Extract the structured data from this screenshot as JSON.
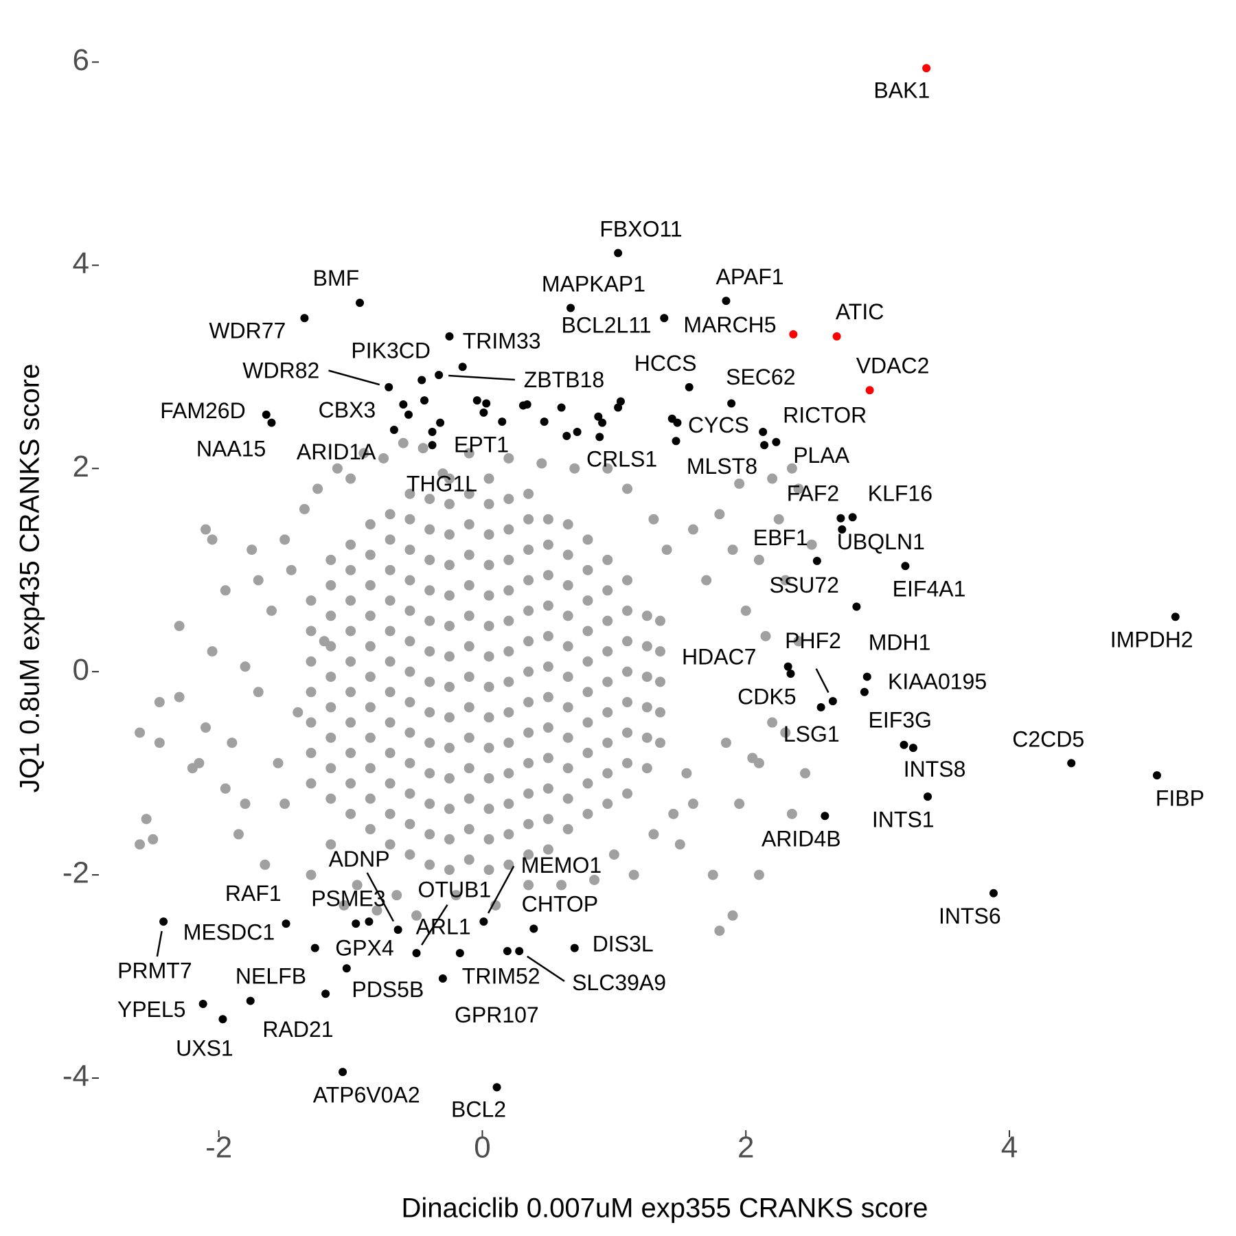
{
  "chart_data": {
    "type": "scatter",
    "x_label": "Dinaciclib 0.007uM exp355 CRANKS score",
    "y_label": "JQ1 0.8uM exp435 CRANKS score",
    "xlim": [
      -2.9,
      5.6
    ],
    "ylim": [
      -4.5,
      6.3
    ],
    "xticks": [
      -2,
      0,
      2,
      4
    ],
    "yticks": [
      -4,
      -2,
      0,
      2,
      4,
      6
    ],
    "grid": false,
    "series": [
      {
        "color": "#a0a0a0",
        "x": [
          -1.3,
          -1.3,
          -1.3,
          -1.3,
          -1.3,
          -1.3,
          -1.3,
          -1.15,
          -1.15,
          -1.15,
          -1.15,
          -1.15,
          -1.15,
          -1.15,
          -1.15,
          -1.15,
          -1.0,
          -1.0,
          -1.0,
          -1.0,
          -1.0,
          -1.0,
          -1.0,
          -1.0,
          -1.0,
          -1.0,
          -0.85,
          -0.85,
          -0.85,
          -0.85,
          -0.85,
          -0.85,
          -0.85,
          -0.85,
          -0.85,
          -0.85,
          -0.85,
          -0.7,
          -0.7,
          -0.7,
          -0.7,
          -0.7,
          -0.7,
          -0.7,
          -0.7,
          -0.7,
          -0.7,
          -0.7,
          -0.7,
          -0.55,
          -0.55,
          -0.55,
          -0.55,
          -0.55,
          -0.55,
          -0.55,
          -0.55,
          -0.55,
          -0.55,
          -0.55,
          -0.55,
          -0.55,
          -0.4,
          -0.4,
          -0.4,
          -0.4,
          -0.4,
          -0.4,
          -0.4,
          -0.4,
          -0.4,
          -0.4,
          -0.4,
          -0.4,
          -0.4,
          -0.25,
          -0.25,
          -0.25,
          -0.25,
          -0.25,
          -0.25,
          -0.25,
          -0.25,
          -0.25,
          -0.25,
          -0.25,
          -0.25,
          -0.25,
          -0.25,
          -0.1,
          -0.1,
          -0.1,
          -0.1,
          -0.1,
          -0.1,
          -0.1,
          -0.1,
          -0.1,
          -0.1,
          -0.1,
          -0.1,
          -0.1,
          0.05,
          0.05,
          0.05,
          0.05,
          0.05,
          0.05,
          0.05,
          0.05,
          0.05,
          0.05,
          0.05,
          0.05,
          0.05,
          0.05,
          0.2,
          0.2,
          0.2,
          0.2,
          0.2,
          0.2,
          0.2,
          0.2,
          0.2,
          0.2,
          0.2,
          0.2,
          0.2,
          0.35,
          0.35,
          0.35,
          0.35,
          0.35,
          0.35,
          0.35,
          0.35,
          0.35,
          0.35,
          0.35,
          0.35,
          0.35,
          0.5,
          0.5,
          0.5,
          0.5,
          0.5,
          0.5,
          0.5,
          0.5,
          0.5,
          0.5,
          0.5,
          0.5,
          0.65,
          0.65,
          0.65,
          0.65,
          0.65,
          0.65,
          0.65,
          0.65,
          0.65,
          0.65,
          0.65,
          0.8,
          0.8,
          0.8,
          0.8,
          0.8,
          0.8,
          0.8,
          0.8,
          0.8,
          0.8,
          0.95,
          0.95,
          0.95,
          0.95,
          0.95,
          0.95,
          0.95,
          0.95,
          0.95,
          1.1,
          1.1,
          1.1,
          1.1,
          1.1,
          1.1,
          1.1,
          1.1,
          1.25,
          1.25,
          1.25,
          1.25,
          1.25,
          1.25,
          1.35,
          1.35,
          1.35,
          1.35,
          1.35,
          -2.6,
          -2.55,
          -2.5,
          -2.45,
          -2.6,
          -2.45,
          -2.3,
          -2.2,
          -2.1,
          -2.05,
          -2.1,
          -2.05,
          -1.95,
          -1.95,
          -1.9,
          -1.85,
          -1.8,
          -1.75,
          -1.7,
          -1.65,
          -1.6,
          -1.5,
          -1.5,
          -1.45,
          -1.4,
          -1.35,
          -1.3,
          -1.25,
          -1.2,
          -1.15,
          -1.1,
          -1.05,
          -1.0,
          -0.95,
          -0.9,
          -0.8,
          -0.75,
          -0.65,
          -0.6,
          -0.5,
          -0.45,
          -0.3,
          -0.2,
          -0.1,
          0.1,
          0.2,
          0.35,
          0.45,
          0.6,
          0.7,
          0.85,
          0.95,
          1.0,
          1.1,
          1.15,
          1.3,
          1.3,
          1.4,
          1.45,
          1.5,
          1.6,
          1.6,
          1.7,
          1.75,
          1.8,
          1.8,
          1.9,
          1.9,
          1.95,
          2.0,
          2.05,
          2.1,
          2.1,
          2.15,
          2.2,
          2.25,
          2.3,
          2.3,
          2.35,
          2.4,
          2.4,
          2.45,
          2.5,
          2.1,
          1.95,
          2.2,
          2.35,
          1.85,
          1.55,
          -1.8,
          -2.3,
          -2.15,
          -1.55,
          -1.7
        ],
        "values": [
          -1.1,
          -0.8,
          -0.5,
          -0.2,
          0.1,
          0.4,
          0.7,
          -1.25,
          -0.95,
          -0.65,
          -0.35,
          -0.05,
          0.25,
          0.55,
          0.85,
          1.1,
          -1.4,
          -1.1,
          -0.8,
          -0.5,
          -0.2,
          0.1,
          0.4,
          0.7,
          1.0,
          1.25,
          -1.55,
          -1.25,
          -0.95,
          -0.65,
          -0.35,
          -0.05,
          0.25,
          0.55,
          0.85,
          1.15,
          1.45,
          -1.7,
          -1.4,
          -1.1,
          -0.8,
          -0.5,
          -0.2,
          0.1,
          0.4,
          0.7,
          1.0,
          1.3,
          1.55,
          -1.8,
          -1.5,
          -1.2,
          -0.9,
          -0.6,
          -0.3,
          0.0,
          0.3,
          0.6,
          0.9,
          1.2,
          1.5,
          1.75,
          -1.9,
          -1.6,
          -1.3,
          -1.0,
          -0.7,
          -0.4,
          -0.1,
          0.2,
          0.5,
          0.8,
          1.1,
          1.4,
          1.7,
          -1.95,
          -1.65,
          -1.35,
          -1.05,
          -0.75,
          -0.45,
          -0.15,
          0.15,
          0.45,
          0.75,
          1.05,
          1.35,
          1.65,
          1.9,
          -1.85,
          -1.55,
          -1.25,
          -0.95,
          -0.65,
          -0.35,
          -0.05,
          0.25,
          0.55,
          0.85,
          1.15,
          1.45,
          1.75,
          -1.95,
          -1.65,
          -1.35,
          -1.05,
          -0.75,
          -0.45,
          -0.15,
          0.15,
          0.45,
          0.75,
          1.05,
          1.35,
          1.65,
          1.9,
          -1.9,
          -1.6,
          -1.3,
          -1.0,
          -0.7,
          -0.4,
          -0.1,
          0.2,
          0.5,
          0.8,
          1.1,
          1.4,
          1.7,
          -1.8,
          -1.5,
          -1.2,
          -0.9,
          -0.6,
          -0.3,
          0.0,
          0.3,
          0.6,
          0.9,
          1.2,
          1.5,
          1.75,
          -1.75,
          -1.45,
          -1.15,
          -0.85,
          -0.55,
          -0.25,
          0.05,
          0.35,
          0.65,
          0.95,
          1.25,
          1.5,
          -1.55,
          -1.25,
          -0.95,
          -0.65,
          -0.35,
          -0.05,
          0.25,
          0.55,
          0.85,
          1.15,
          1.45,
          -1.4,
          -1.1,
          -0.8,
          -0.5,
          -0.2,
          0.1,
          0.4,
          0.7,
          1.0,
          1.3,
          -1.3,
          -1.0,
          -0.7,
          -0.4,
          -0.1,
          0.2,
          0.5,
          0.8,
          1.1,
          -1.2,
          -0.9,
          -0.6,
          -0.3,
          0.0,
          0.3,
          0.6,
          0.9,
          -0.95,
          -0.65,
          -0.35,
          -0.05,
          0.25,
          0.55,
          -0.7,
          -0.4,
          -0.1,
          0.2,
          0.5,
          -1.7,
          -1.45,
          -1.65,
          -0.3,
          -0.6,
          -0.7,
          0.45,
          -0.95,
          -0.55,
          0.2,
          1.4,
          1.3,
          0.8,
          -1.15,
          -0.7,
          -1.6,
          0.05,
          1.2,
          -0.2,
          -1.9,
          0.6,
          1.3,
          -1.3,
          1.0,
          -0.4,
          1.6,
          -2.0,
          1.8,
          0.3,
          -1.7,
          2.0,
          -2.3,
          1.9,
          -2.1,
          2.15,
          -2.35,
          2.1,
          -2.2,
          2.25,
          -2.4,
          2.2,
          1.95,
          -2.2,
          2.15,
          -2.3,
          2.1,
          -2.1,
          2.05,
          -2.1,
          2.0,
          -2.05,
          2.0,
          -1.8,
          1.8,
          -2.0,
          1.5,
          -1.6,
          1.2,
          -1.4,
          -1.7,
          1.4,
          -1.3,
          0.9,
          -2.0,
          1.55,
          -2.55,
          -2.4,
          1.2,
          -1.3,
          0.6,
          -0.85,
          1.1,
          -2.0,
          0.35,
          -0.5,
          1.5,
          0.9,
          -0.6,
          -1.4,
          1.8,
          0.3,
          -1.0,
          1.25,
          -0.9,
          1.85,
          1.9,
          2.0,
          -0.7,
          -1.0,
          -1.3,
          -0.25,
          -0.9,
          -0.9,
          0.9
        ]
      },
      {
        "color": "#000000",
        "labels": [
          "FBXO11",
          "BMF",
          "WDR77",
          "MAPKAP1",
          "APAF1",
          "BCL2L11",
          "TRIM33",
          "ZBTB18",
          "PIK3CD",
          "WDR82",
          "CBX3",
          "ARID1A",
          "EPT1",
          "THG1L",
          "HCCS",
          "SEC62",
          "CYCS",
          "MLST8",
          "RICTOR",
          "PLAA",
          "CRLS1",
          "FAM26D",
          "NAA15",
          "FAF2",
          "KLF16",
          "UBQLN1",
          "EBF1",
          "EIF4A1",
          "SSU72",
          "IMPDH2",
          "HDAC7",
          "CDK5",
          "PHF2",
          "LSG1",
          "MDH1",
          "KIAA0195",
          "EIF3G",
          "INTS8",
          "C2CD5",
          "FIBP",
          "INTS1",
          "ARID4B",
          "INTS6",
          "PRMT7",
          "MESDC1",
          "RAF1",
          "GPX4",
          "PSME3",
          "ADNP",
          "OTUB1",
          "ARL1",
          "MEMO1",
          "CHTOP",
          "TRIM52",
          "SLC39A9",
          "DIS3L",
          "GPR107",
          "PDS5B",
          "NELFB",
          "RAD21",
          "YPEL5",
          "UXS1",
          "ATP6V0A2",
          "BCL2",
          null,
          null,
          null,
          null,
          null,
          null,
          null,
          null,
          null,
          null,
          null,
          null,
          null,
          null,
          null,
          null,
          null,
          null,
          null,
          null
        ],
        "x": [
          1.03,
          -0.93,
          -1.35,
          0.67,
          1.85,
          1.38,
          -0.25,
          -0.33,
          -0.46,
          -0.71,
          -0.6,
          -0.67,
          -0.32,
          -0.38,
          1.57,
          1.89,
          1.48,
          1.47,
          2.13,
          2.23,
          0.89,
          -1.64,
          -1.6,
          2.72,
          2.81,
          2.73,
          2.54,
          3.21,
          2.84,
          5.26,
          2.32,
          2.34,
          2.66,
          2.57,
          2.92,
          2.9,
          3.2,
          3.27,
          4.47,
          5.12,
          3.38,
          2.6,
          3.88,
          -2.42,
          -1.49,
          -1.27,
          -0.96,
          -0.86,
          -0.64,
          -0.5,
          -0.17,
          0.01,
          0.39,
          0.19,
          0.28,
          0.7,
          -0.3,
          -1.03,
          -1.19,
          -1.76,
          -2.12,
          -1.97,
          -1.06,
          0.11,
          -0.15,
          -0.56,
          -0.44,
          -0.38,
          -0.04,
          0.03,
          0.01,
          0.15,
          0.31,
          0.34,
          0.47,
          0.6,
          0.64,
          0.72,
          0.88,
          0.91,
          1.05,
          1.03,
          1.44,
          2.14
        ],
        "values": [
          4.12,
          3.63,
          3.48,
          3.58,
          3.65,
          3.48,
          3.3,
          2.92,
          2.87,
          2.8,
          2.63,
          2.38,
          2.45,
          2.23,
          2.8,
          2.64,
          2.45,
          2.27,
          2.36,
          2.26,
          2.31,
          2.53,
          2.45,
          1.51,
          1.52,
          1.4,
          1.09,
          1.04,
          0.64,
          0.54,
          0.05,
          -0.02,
          -0.29,
          -0.35,
          -0.05,
          -0.2,
          -0.72,
          -0.75,
          -0.9,
          -1.02,
          -1.23,
          -1.42,
          -2.18,
          -2.46,
          -2.48,
          -2.72,
          -2.48,
          -2.46,
          -2.54,
          -2.77,
          -2.77,
          -2.46,
          -2.53,
          -2.75,
          -2.75,
          -2.72,
          -3.02,
          -2.92,
          -3.17,
          -3.24,
          -3.27,
          -3.42,
          -3.94,
          -4.09,
          3.0,
          2.53,
          2.67,
          2.36,
          2.67,
          2.64,
          2.55,
          2.46,
          2.62,
          2.63,
          2.46,
          2.6,
          2.32,
          2.36,
          2.51,
          2.45,
          2.66,
          2.6,
          2.49,
          2.23
        ]
      },
      {
        "color": "#ff0000",
        "labels": [
          "BAK1",
          "MARCH5",
          "ATIC",
          "VDAC2"
        ],
        "x": [
          3.37,
          2.36,
          2.69,
          2.94
        ],
        "values": [
          5.94,
          3.32,
          3.3,
          2.77
        ]
      }
    ]
  }
}
